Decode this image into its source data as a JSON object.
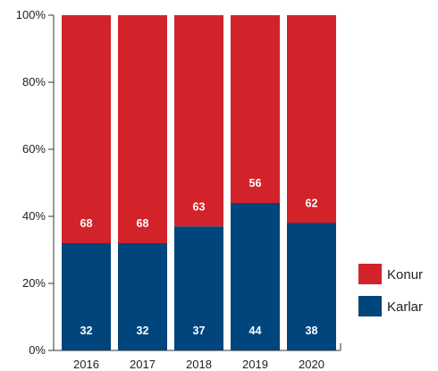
{
  "chart_data": {
    "type": "bar",
    "stacked": true,
    "percent": true,
    "categories": [
      "2016",
      "2017",
      "2018",
      "2019",
      "2020"
    ],
    "series": [
      {
        "name": "Karlar",
        "color": "#00457c",
        "values": [
          32,
          32,
          37,
          44,
          38
        ]
      },
      {
        "name": "Konur",
        "color": "#d2232a",
        "values": [
          68,
          68,
          63,
          56,
          62
        ]
      }
    ],
    "ylim": [
      0,
      100
    ],
    "yticks": [
      0,
      20,
      40,
      60,
      80,
      100
    ],
    "ytick_labels": [
      "0%",
      "20%",
      "40%",
      "60%",
      "80%",
      "100%"
    ],
    "legend": {
      "placement": "right",
      "order": [
        "Konur",
        "Karlar"
      ]
    }
  }
}
